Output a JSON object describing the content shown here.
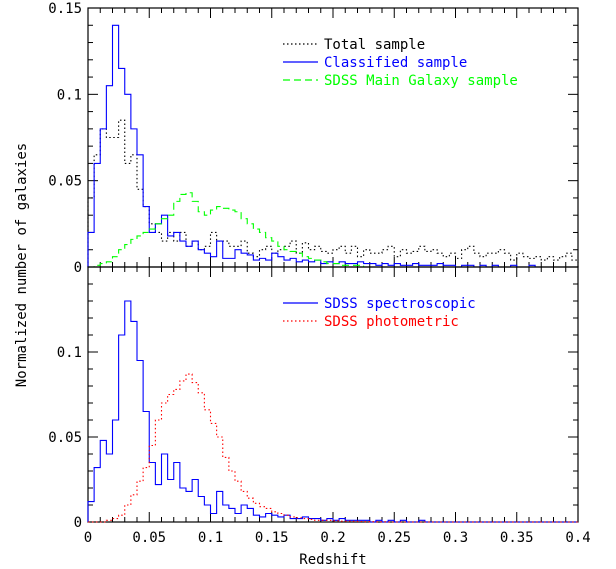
{
  "chart_data": [
    {
      "type": "histogram",
      "panel": "top",
      "xlim": [
        0,
        0.4
      ],
      "ylim": [
        0,
        0.15
      ],
      "bin_width": 0.005,
      "ylabel": "Normalized number of galaxies",
      "xtick_labels_shown": false,
      "yticks": [
        {
          "value": 0,
          "label": "0"
        },
        {
          "value": 0.05,
          "label": "0.05"
        },
        {
          "value": 0.1,
          "label": "0.1"
        },
        {
          "value": 0.15,
          "label": "0.15"
        }
      ],
      "legend_position": "top-right",
      "series": [
        {
          "name": "Total sample",
          "color": "#000000",
          "style": "dotted",
          "values": [
            0.04,
            0.065,
            0.08,
            0.075,
            0.075,
            0.085,
            0.06,
            0.065,
            0.045,
            0.035,
            0.025,
            0.02,
            0.015,
            0.02,
            0.015,
            0.02,
            0.012,
            0.015,
            0.01,
            0.012,
            0.02,
            0.015,
            0.015,
            0.012,
            0.012,
            0.015,
            0.008,
            0.006,
            0.01,
            0.012,
            0.008,
            0.01,
            0.012,
            0.015,
            0.008,
            0.014,
            0.01,
            0.012,
            0.009,
            0.008,
            0.01,
            0.012,
            0.008,
            0.012,
            0.006,
            0.01,
            0.008,
            0.008,
            0.01,
            0.012,
            0.006,
            0.01,
            0.008,
            0.009,
            0.012,
            0.009,
            0.01,
            0.008,
            0.006,
            0.008,
            0.005,
            0.01,
            0.012,
            0.008,
            0.006,
            0.008,
            0.008,
            0.01,
            0.008,
            0.004,
            0.008,
            0.006,
            0.005,
            0.006,
            0.004,
            0.006,
            0.004,
            0.006,
            0.008,
            0.004
          ]
        },
        {
          "name": "Classified sample",
          "color": "#0000ff",
          "style": "solid",
          "values": [
            0.02,
            0.06,
            0.08,
            0.105,
            0.14,
            0.115,
            0.1,
            0.08,
            0.065,
            0.035,
            0.02,
            0.025,
            0.03,
            0.018,
            0.02,
            0.015,
            0.012,
            0.015,
            0.01,
            0.008,
            0.006,
            0.015,
            0.005,
            0.005,
            0.01,
            0.008,
            0.007,
            0.004,
            0.005,
            0.004,
            0.008,
            0.006,
            0.004,
            0.005,
            0.003,
            0.004,
            0.003,
            0.004,
            0.002,
            0.003,
            0.002,
            0.003,
            0.002,
            0.002,
            0.003,
            0.002,
            0.002,
            0.001,
            0.002,
            0.001,
            0.002,
            0.001,
            0.001,
            0.002,
            0.001,
            0.001,
            0.001,
            0.002,
            0.001,
            0.001,
            0,
            0.001,
            0.001,
            0,
            0.001,
            0,
            0.001,
            0,
            0,
            0.001,
            0,
            0,
            0.001,
            0,
            0,
            0,
            0,
            0,
            0,
            0
          ]
        },
        {
          "name": "SDSS Main Galaxy sample",
          "color": "#00ff00",
          "style": "dashed",
          "values": [
            0,
            0.001,
            0.002,
            0.003,
            0.006,
            0.01,
            0.013,
            0.016,
            0.018,
            0.02,
            0.022,
            0.025,
            0.028,
            0.03,
            0.038,
            0.042,
            0.043,
            0.038,
            0.032,
            0.03,
            0.033,
            0.035,
            0.034,
            0.033,
            0.032,
            0.028,
            0.025,
            0.022,
            0.02,
            0.017,
            0.015,
            0.012,
            0.01,
            0.009,
            0.008,
            0.006,
            0.005,
            0.004,
            0.003,
            0.002,
            0.002,
            0.001,
            0.001,
            0.001,
            0.001,
            0,
            0,
            0,
            0,
            0,
            0,
            0,
            0,
            0,
            0,
            0,
            0,
            0,
            0,
            0,
            0,
            0,
            0,
            0,
            0,
            0,
            0,
            0,
            0,
            0,
            0,
            0,
            0,
            0,
            0,
            0,
            0,
            0,
            0,
            0
          ]
        }
      ]
    },
    {
      "type": "histogram",
      "panel": "bottom",
      "xlim": [
        0,
        0.4
      ],
      "ylim": [
        0,
        0.15
      ],
      "bin_width": 0.005,
      "xlabel": "Redshift",
      "xticks": [
        {
          "value": 0,
          "label": "0"
        },
        {
          "value": 0.05,
          "label": "0.05"
        },
        {
          "value": 0.1,
          "label": "0.1"
        },
        {
          "value": 0.15,
          "label": "0.15"
        },
        {
          "value": 0.2,
          "label": "0.2"
        },
        {
          "value": 0.25,
          "label": "0.25"
        },
        {
          "value": 0.3,
          "label": "0.3"
        },
        {
          "value": 0.35,
          "label": "0.35"
        },
        {
          "value": 0.4,
          "label": "0.4"
        }
      ],
      "yticks": [
        {
          "value": 0,
          "label": "0"
        },
        {
          "value": 0.05,
          "label": "0.05"
        },
        {
          "value": 0.1,
          "label": "0.1"
        }
      ],
      "legend_position": "top-right",
      "series": [
        {
          "name": "SDSS spectroscopic",
          "color": "#0000ff",
          "style": "solid",
          "values": [
            0.012,
            0.032,
            0.048,
            0.04,
            0.06,
            0.11,
            0.13,
            0.118,
            0.095,
            0.065,
            0.035,
            0.022,
            0.04,
            0.025,
            0.035,
            0.02,
            0.018,
            0.025,
            0.015,
            0.01,
            0.005,
            0.018,
            0.01,
            0.008,
            0.005,
            0.01,
            0.008,
            0.004,
            0.003,
            0.005,
            0.004,
            0.003,
            0.004,
            0.002,
            0.002,
            0.003,
            0.002,
            0.002,
            0.001,
            0.002,
            0.001,
            0.002,
            0.001,
            0.001,
            0.001,
            0.001,
            0,
            0.001,
            0,
            0.001,
            0,
            0.001,
            0,
            0,
            0.001,
            0,
            0,
            0,
            0,
            0,
            0,
            0,
            0,
            0,
            0,
            0,
            0,
            0,
            0,
            0,
            0,
            0,
            0,
            0,
            0,
            0,
            0,
            0,
            0,
            0
          ]
        },
        {
          "name": "SDSS photometric",
          "color": "#ff0000",
          "style": "dotted",
          "values": [
            0,
            0,
            0,
            0.001,
            0.002,
            0.004,
            0.01,
            0.016,
            0.024,
            0.032,
            0.045,
            0.06,
            0.07,
            0.075,
            0.078,
            0.083,
            0.087,
            0.082,
            0.076,
            0.066,
            0.058,
            0.05,
            0.038,
            0.03,
            0.024,
            0.018,
            0.014,
            0.011,
            0.009,
            0.008,
            0.006,
            0.005,
            0.004,
            0.003,
            0.0025,
            0.002,
            0.0015,
            0.001,
            0.001,
            0.001,
            0.0007,
            0.0005,
            0.0005,
            0.0004,
            0.0003,
            0.0002,
            0.0002,
            0.0001,
            0.0001,
            0,
            0,
            0,
            0,
            0,
            0,
            0,
            0,
            0,
            0,
            0,
            0,
            0,
            0,
            0,
            0,
            0,
            0,
            0,
            0,
            0,
            0,
            0,
            0,
            0,
            0,
            0,
            0,
            0,
            0,
            0
          ]
        }
      ]
    }
  ]
}
